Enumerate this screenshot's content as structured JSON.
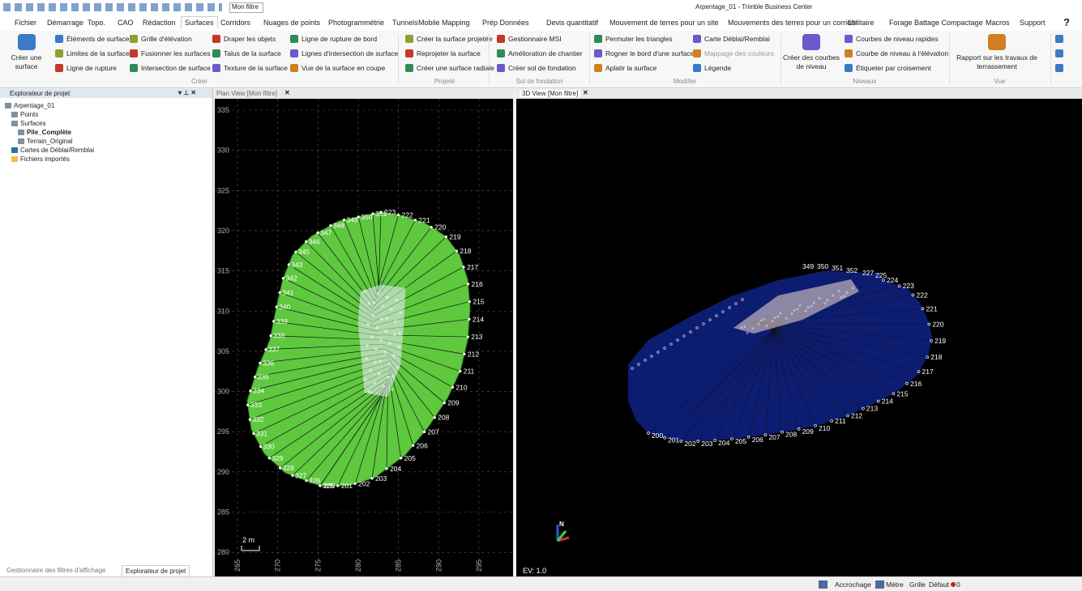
{
  "title_bar": {
    "filter": "Mon filtre",
    "title": "Arpentage_01 - Trimble Business Center"
  },
  "menu": [
    "Fichier",
    "Démarrage",
    "Topo.",
    "CAO",
    "Rédaction",
    "Surfaces",
    "Corridors",
    "Nuages de points",
    "Photogrammétrie",
    "Tunnels",
    "Mobile Mapping",
    "Prép Données",
    "Devis quantitatif",
    "Mouvement de terres pour un site",
    "Mouvements des terres pour un corridor",
    "Utilitaire",
    "Forage Battage Compactage",
    "Macros",
    "Support"
  ],
  "ribbon": [
    {
      "label": "Créer",
      "big": "Créer une surface",
      "columns": [
        [
          "Éléments de surface",
          "Limites de la surface",
          "Ligne de rupture"
        ],
        [
          "Grille d'élévation",
          "Fusionner les surfaces",
          "Intersection de surface"
        ],
        [
          "Draper les objets",
          "Talus de la surface",
          "Texture de la surface"
        ],
        [
          "Ligne de rupture de bord",
          "Lignes d'intersection de surface",
          "Vue de la surface en coupe"
        ]
      ]
    },
    {
      "label": "Projeté",
      "columns": [
        [
          "Créer la surface projetée",
          "Reprojeter la surface",
          "Créer une surface radiale"
        ]
      ]
    },
    {
      "label": "Sol de fondation",
      "columns": [
        [
          "Gestionnaire MSI",
          "Amélioration de chantier",
          "Créer sol de fondation"
        ]
      ]
    },
    {
      "label": "Modifier",
      "columns": [
        [
          "Permuter les triangles",
          "Rogner le bord d'une surface",
          "Aplatir la surface"
        ],
        [
          "Carte Déblai/Remblai",
          "Mappage des couleurs",
          "Légende"
        ]
      ]
    },
    {
      "label": "Niveaux",
      "big": "Créer des courbes de niveau",
      "columns": [
        [
          "Courbes de niveau rapides",
          "Courbe de niveau à l'élévation",
          "Étiqueter par croisement"
        ]
      ]
    },
    {
      "label": "Vue",
      "big": "Rapport sur les travaux de terrassement",
      "columns": []
    }
  ],
  "explorer": {
    "title": "Explorateur de projet",
    "tree": [
      "Arpentage_01",
      "Points",
      "Surfaces",
      "Pile_Complète",
      "Terrain_Original",
      "Cartes de Déblai/Remblai",
      "Fichiers importés"
    ],
    "bottom_tabs": [
      "Gestionnaire des filtres d'affichage",
      "Explorateur de projet"
    ]
  },
  "plan_view": {
    "tab": "Plan View [Mon filtre]",
    "yticks": [
      335,
      330,
      325,
      320,
      315,
      310,
      305,
      300,
      295,
      290,
      285,
      280
    ],
    "xticks": [
      265,
      270,
      275,
      280,
      285,
      290,
      295
    ],
    "scale": "2 m",
    "labels_right": [
      "200",
      "201",
      "202",
      "203",
      "204",
      "205",
      "206",
      "207",
      "208",
      "209",
      "210",
      "211",
      "212",
      "213",
      "214",
      "215",
      "216",
      "217",
      "218",
      "219",
      "220",
      "221",
      "222",
      "223"
    ],
    "labels_left": [
      "325",
      "326",
      "327",
      "328",
      "329",
      "330",
      "331",
      "332",
      "333",
      "334",
      "335",
      "336",
      "337",
      "338",
      "339",
      "340",
      "341",
      "342",
      "343",
      "345",
      "346",
      "347",
      "348",
      "349",
      "350",
      "351"
    ]
  },
  "view_3d": {
    "tab": "3D View [Mon filtre]",
    "ev": "EV: 1.0",
    "north": "N",
    "labels_edge": [
      "224",
      "223",
      "222",
      "221",
      "220",
      "219",
      "218",
      "217",
      "216",
      "215",
      "214",
      "213",
      "212",
      "211",
      "210",
      "209",
      "208",
      "207",
      "206",
      "205",
      "204",
      "203",
      "202",
      "201",
      "200"
    ],
    "labels_top": [
      "349",
      "350",
      "351",
      "352",
      "227",
      "225"
    ]
  },
  "status_bar": [
    "Accrochage",
    "Mètre",
    "Grille",
    "Défaut",
    "0"
  ]
}
